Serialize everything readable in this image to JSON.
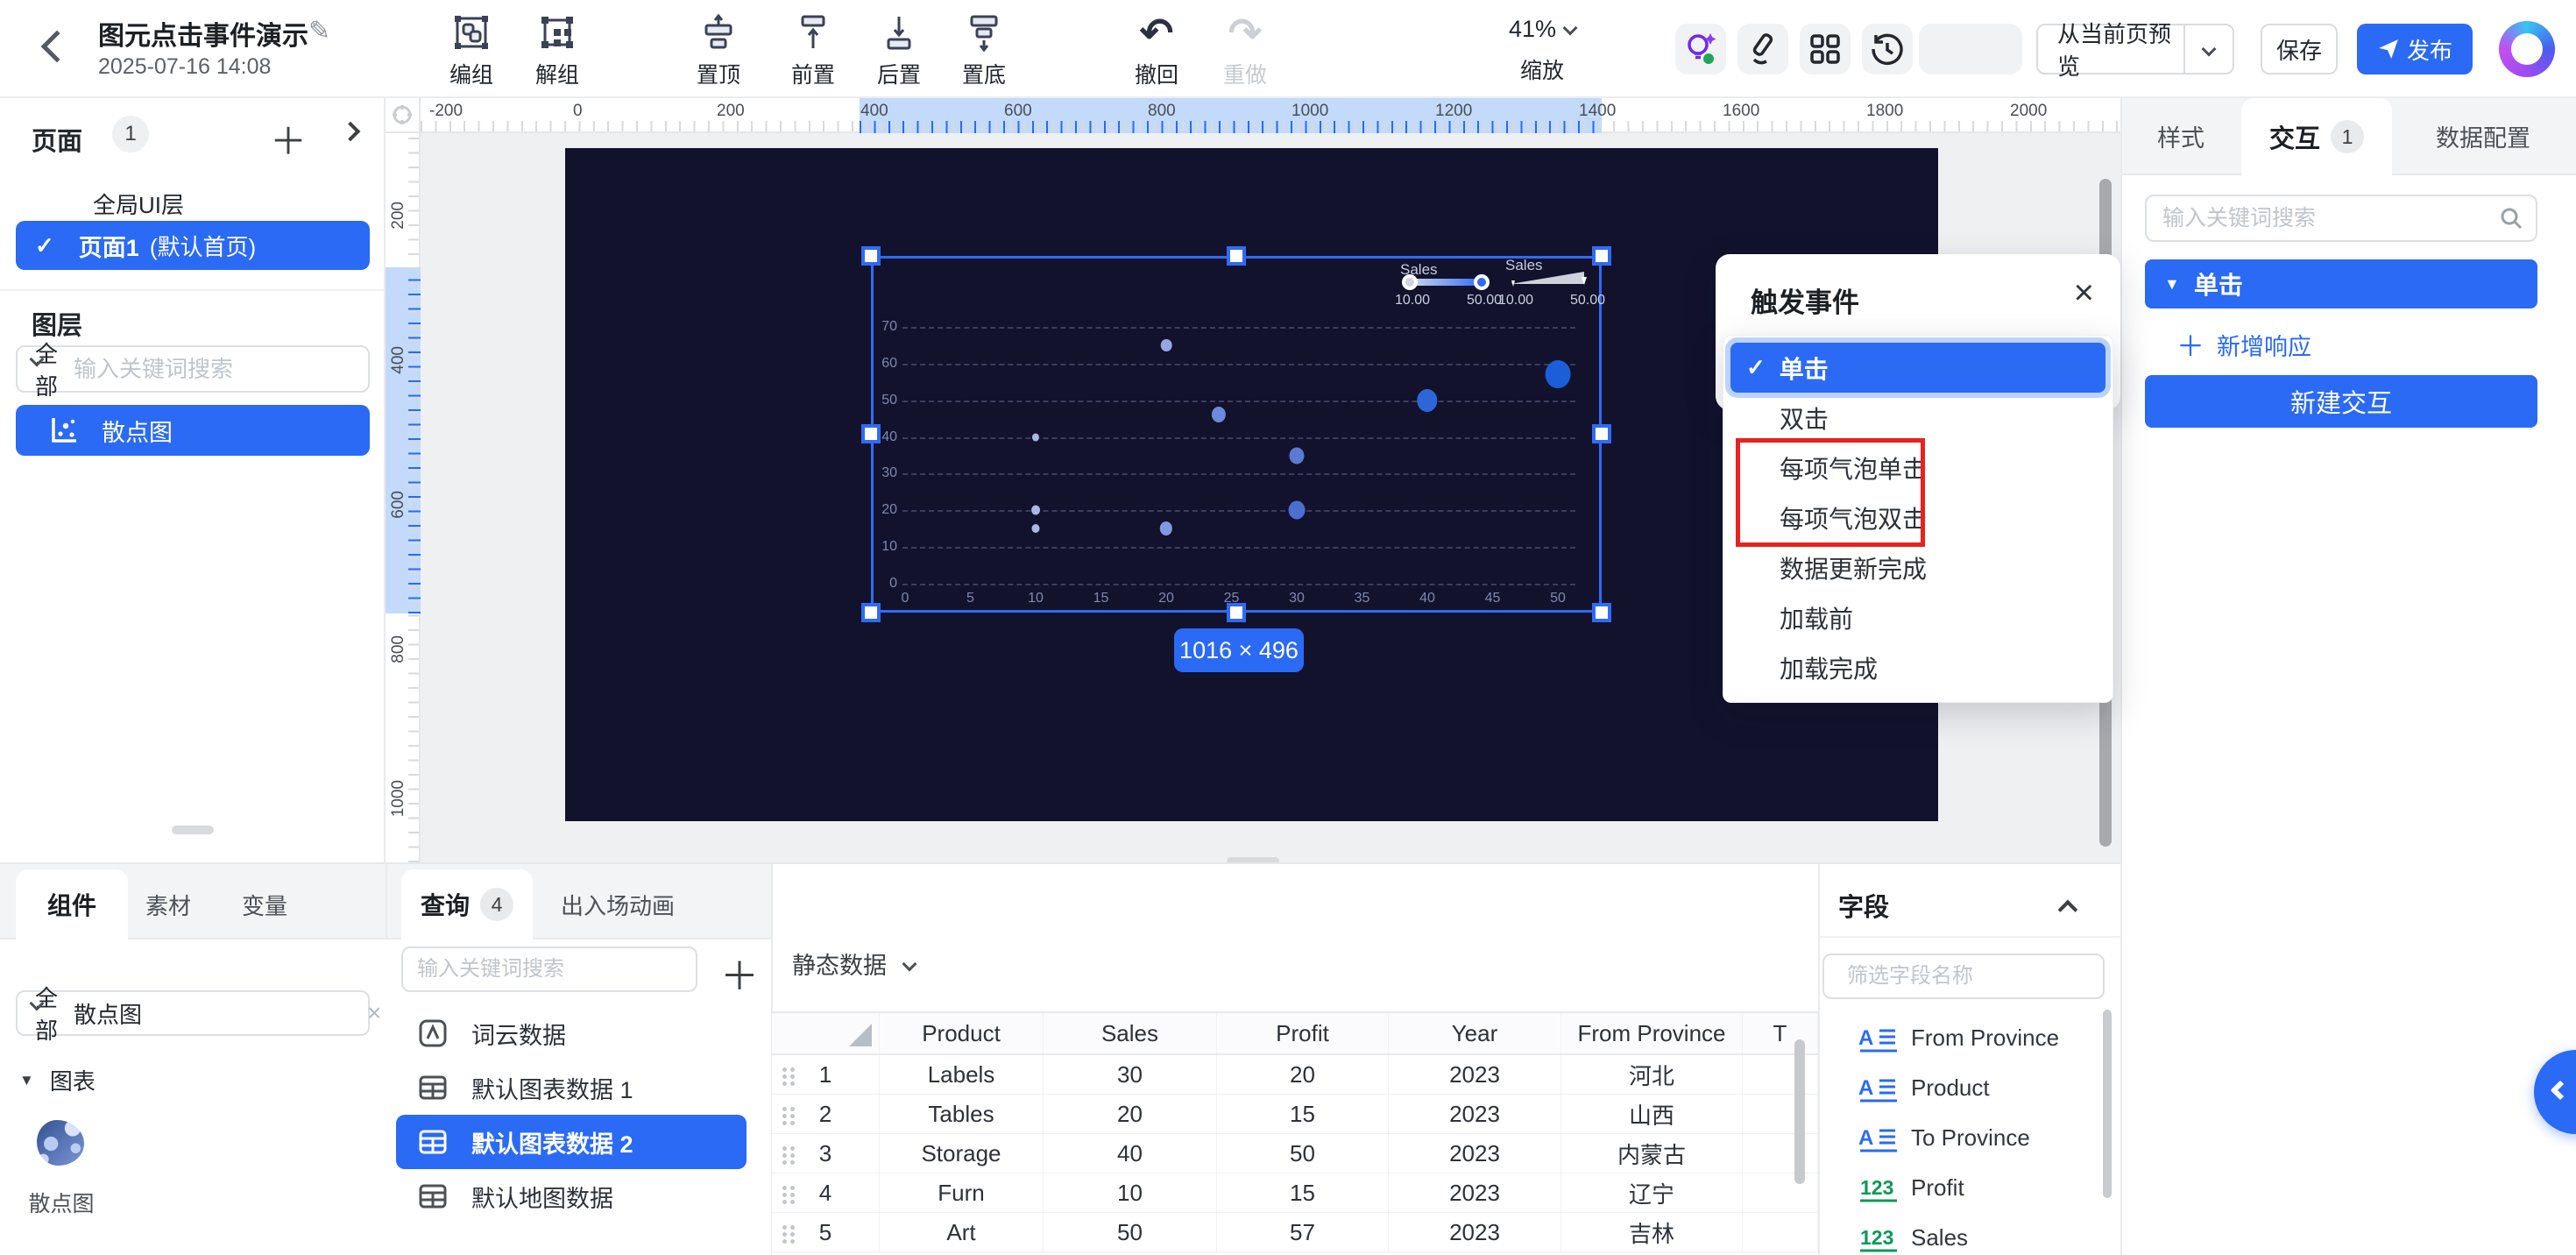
{
  "icons": {
    "close": "×",
    "check": "✓",
    "caret_down": "▼",
    "plus": "＋",
    "pencil": "✎",
    "undo": "↶",
    "redo": "↷"
  },
  "colors": {
    "primary": "#2a6af5",
    "canvas_bg": "#12122d",
    "annotation_red": "#e8221f"
  },
  "header": {
    "title": "图元点击事件演示",
    "date": "2025-07-16 14:08"
  },
  "toolbar": {
    "group": "编组",
    "ungroup": "解组",
    "to_top": "置顶",
    "bring_forward": "前置",
    "send_backward": "后置",
    "to_bottom": "置底",
    "undo": "撤回",
    "redo": "重做",
    "zoom_value": "41%",
    "zoom_label": "缩放"
  },
  "topbar_right": {
    "preview": "从当前页预览",
    "save": "保存",
    "publish": "发布"
  },
  "sidebar": {
    "pages_label": "页面",
    "pages_count": "1",
    "global_layer": "全局UI层",
    "page1": "页面1",
    "page1_suffix": "(默认首页)",
    "layers_label": "图层",
    "filter_all": "全部",
    "search_placeholder": "输入关键词搜索",
    "layer_item": "散点图"
  },
  "workspace": {
    "ruler_h": [
      "-200",
      "0",
      "200",
      "400",
      "600",
      "800",
      "1000",
      "1200",
      "1400",
      "1600",
      "1800",
      "2000"
    ],
    "ruler_v": [
      "200",
      "400",
      "600",
      "800",
      "1000"
    ],
    "size_badge": "1016 × 496"
  },
  "canvas": {
    "chart_data": {
      "type": "scatter",
      "x_ticks": [
        0,
        5,
        10,
        15,
        20,
        25,
        30,
        35,
        40,
        45,
        50
      ],
      "y_ticks": [
        0,
        10,
        20,
        30,
        40,
        50,
        60,
        70
      ],
      "xlim": [
        0,
        50
      ],
      "ylim": [
        0,
        70
      ],
      "grid": true,
      "legend_position": "top-right",
      "legends": [
        {
          "name": "Sales",
          "kind": "color-gradient",
          "min": "10.00",
          "max": "50.00"
        },
        {
          "name": "Sales",
          "kind": "size",
          "min": "10.00",
          "max": "50.00"
        }
      ],
      "points": [
        {
          "x": 10,
          "y": 40,
          "r": 4.5,
          "color": "#a9b6e8"
        },
        {
          "x": 10,
          "y": 20,
          "r": 5.5,
          "color": "#a9b6e8"
        },
        {
          "x": 10,
          "y": 15,
          "r": 5,
          "color": "#a9b6e8"
        },
        {
          "x": 20,
          "y": 65,
          "r": 7,
          "color": "#93a7e4"
        },
        {
          "x": 20,
          "y": 15,
          "r": 8,
          "color": "#8099e0"
        },
        {
          "x": 24,
          "y": 46,
          "r": 9,
          "color": "#6d89da"
        },
        {
          "x": 30,
          "y": 35,
          "r": 9.5,
          "color": "#5b7ad5"
        },
        {
          "x": 30,
          "y": 20,
          "r": 10.5,
          "color": "#4a6fd1"
        },
        {
          "x": 40,
          "y": 50,
          "r": 13,
          "color": "#2e66d8"
        },
        {
          "x": 50,
          "y": 57,
          "r": 16,
          "color": "#1b5ed8"
        }
      ]
    }
  },
  "popup": {
    "title": "触发事件",
    "items": [
      {
        "label": "单击",
        "selected": true,
        "highlighted": false
      },
      {
        "label": "双击",
        "selected": false,
        "highlighted": false
      },
      {
        "label": "每项气泡单击",
        "selected": false,
        "highlighted": true
      },
      {
        "label": "每项气泡双击",
        "selected": false,
        "highlighted": true
      },
      {
        "label": "数据更新完成",
        "selected": false,
        "highlighted": false
      },
      {
        "label": "加载前",
        "selected": false,
        "highlighted": false
      },
      {
        "label": "加载完成",
        "selected": false,
        "highlighted": false
      }
    ]
  },
  "right_panel": {
    "tab_style": "样式",
    "tab_interaction": "交互",
    "tab_interaction_badge": "1",
    "tab_data": "数据配置",
    "search_placeholder": "输入关键词搜索",
    "event_name": "单击",
    "add_response": "新增响应",
    "new_interaction": "新建交互"
  },
  "dock": {
    "tab_component": "组件",
    "tab_material": "素材",
    "tab_variable": "变量",
    "component_filter": "全部",
    "component_search_value": "散点图",
    "component_section": "图表",
    "component_item": "散点图",
    "query_tab": "查询",
    "query_badge": "4",
    "anim_tab": "出入场动画",
    "query_search_placeholder": "输入关键词搜索",
    "query_items": [
      {
        "label": "词云数据",
        "icon": "wordcloud-icon",
        "selected": false
      },
      {
        "label": "默认图表数据 1",
        "icon": "table-icon",
        "selected": false
      },
      {
        "label": "默认图表数据 2",
        "icon": "table-icon",
        "selected": true
      },
      {
        "label": "默认地图数据",
        "icon": "table-icon",
        "selected": false
      }
    ],
    "datasource": "静态数据",
    "table": {
      "headers": [
        "",
        "Product",
        "Sales",
        "Profit",
        "Year",
        "From Province",
        "T"
      ],
      "rows": [
        [
          "1",
          "Labels",
          "30",
          "20",
          "2023",
          "河北",
          ""
        ],
        [
          "2",
          "Tables",
          "20",
          "15",
          "2023",
          "山西",
          ""
        ],
        [
          "3",
          "Storage",
          "40",
          "50",
          "2023",
          "内蒙古",
          ""
        ],
        [
          "4",
          "Furn",
          "10",
          "15",
          "2023",
          "辽宁",
          ""
        ],
        [
          "5",
          "Art",
          "50",
          "57",
          "2023",
          "吉林",
          ""
        ]
      ]
    },
    "fields": {
      "title": "字段",
      "filter_placeholder": "筛选字段名称",
      "items": [
        {
          "name": "From Province",
          "type": "text"
        },
        {
          "name": "Product",
          "type": "text"
        },
        {
          "name": "To Province",
          "type": "text"
        },
        {
          "name": "Profit",
          "type": "number"
        },
        {
          "name": "Sales",
          "type": "number"
        }
      ]
    }
  }
}
